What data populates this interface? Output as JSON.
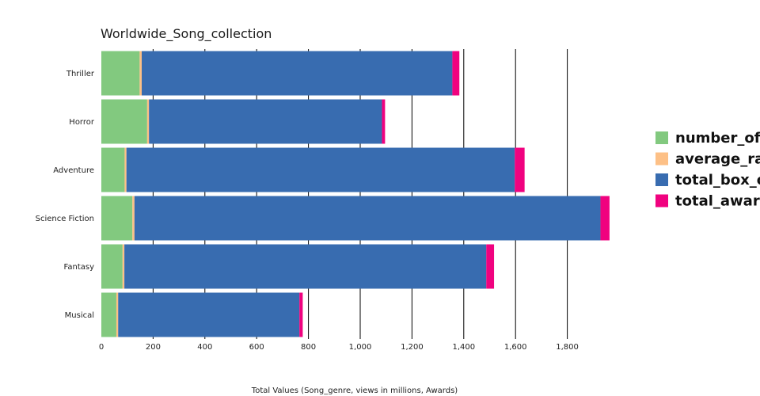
{
  "chart_data": {
    "type": "bar",
    "orientation": "horizontal",
    "stacked": true,
    "title": "Worldwide_Song_collection",
    "xlabel": "Total Values (Song_genre, views in millions, Awards)",
    "ylabel": "",
    "xlim": [
      0,
      1960
    ],
    "x_ticks": [
      0,
      200,
      400,
      600,
      800,
      1000,
      1200,
      1400,
      1600,
      1800
    ],
    "x_tick_labels": [
      "0",
      "200",
      "400",
      "600",
      "800",
      "1,000",
      "1,200",
      "1,400",
      "1,600",
      "1,800"
    ],
    "grid": true,
    "legend_position": "right",
    "categories": [
      "Thriller",
      "Horror",
      "Adventure",
      "Science Fiction",
      "Fantasy",
      "Musical"
    ],
    "series": [
      {
        "name": "number_of_r",
        "color": "#82c97f",
        "values": [
          148,
          177,
          90,
          120,
          82,
          58
        ]
      },
      {
        "name": "average_rat",
        "color": "#fdc086",
        "values": [
          8,
          7,
          7,
          8,
          7,
          7
        ]
      },
      {
        "name": "total_box_of",
        "color": "#386cb0",
        "values": [
          1200,
          900,
          1500,
          1800,
          1398,
          700
        ]
      },
      {
        "name": "total_award",
        "color": "#f0027f",
        "values": [
          27,
          12,
          38,
          35,
          30,
          13
        ]
      }
    ]
  }
}
